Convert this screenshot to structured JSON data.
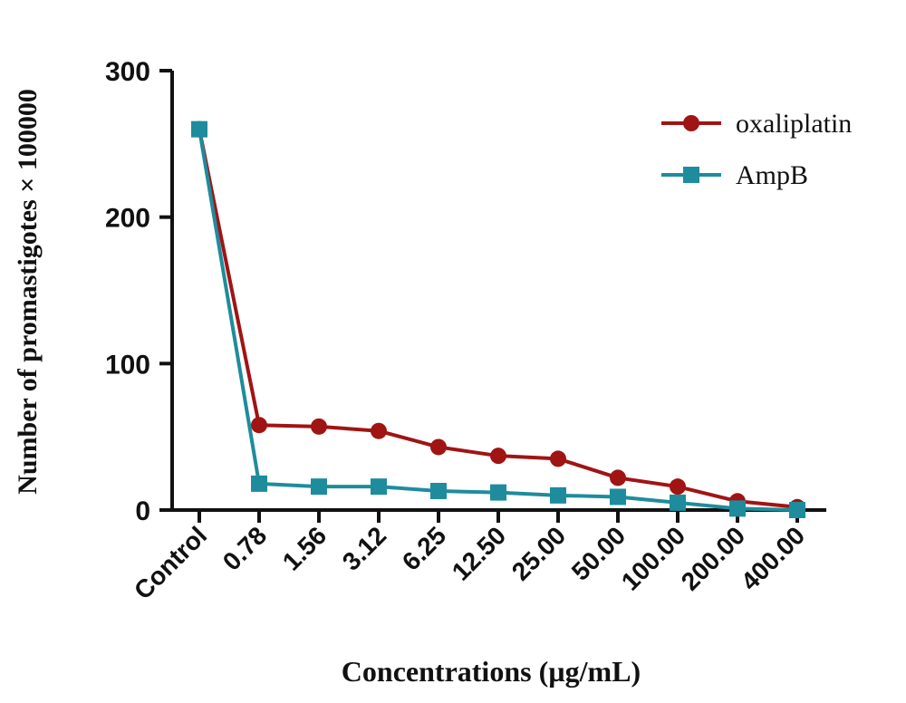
{
  "chart_data": {
    "type": "line",
    "title": "",
    "xlabel": "Concentrations (µg/mL)",
    "ylabel": "Number of promastigotes × 100000",
    "categories": [
      "Control",
      "0.78",
      "1.56",
      "3.12",
      "6.25",
      "12.50",
      "25.00",
      "50.00",
      "100.00",
      "200.00",
      "400.00"
    ],
    "ylim": [
      0,
      300
    ],
    "yticks": [
      "0",
      "100",
      "200",
      "300"
    ],
    "grid": false,
    "legend_position": "top-right",
    "series": [
      {
        "name": "oxaliplatin",
        "color": "#a01414",
        "marker": "circle",
        "values": [
          260,
          58,
          57,
          54,
          43,
          37,
          35,
          22,
          16,
          6,
          2
        ]
      },
      {
        "name": "AmpB",
        "color": "#1e8c9c",
        "marker": "square",
        "values": [
          260,
          18,
          16,
          16,
          13,
          12,
          10,
          9,
          5,
          1,
          0
        ]
      }
    ]
  }
}
